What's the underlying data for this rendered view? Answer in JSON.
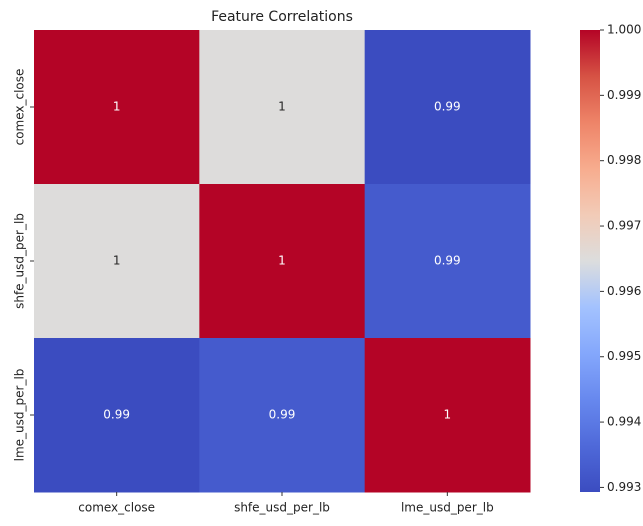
{
  "chart_data": {
    "type": "heatmap",
    "title": "Feature Correlations",
    "x_categories": [
      "comex_close",
      "shfe_usd_per_lb",
      "lme_usd_per_lb"
    ],
    "y_categories": [
      "comex_close",
      "shfe_usd_per_lb",
      "lme_usd_per_lb"
    ],
    "values": [
      [
        1,
        0.9965,
        0.9929
      ],
      [
        0.9965,
        1,
        0.9933
      ],
      [
        0.9929,
        0.9933,
        1
      ]
    ],
    "value_labels": [
      [
        "1",
        "1",
        "0.99"
      ],
      [
        "1",
        "1",
        "0.99"
      ],
      [
        "0.99",
        "0.99",
        "1"
      ]
    ],
    "colormap": "coolwarm",
    "zlim": [
      0.99293,
      1.0
    ],
    "zticks": [
      {
        "value": 0.993,
        "label": "0.993"
      },
      {
        "value": 0.994,
        "label": "0.994"
      },
      {
        "value": 0.995,
        "label": "0.995"
      },
      {
        "value": 0.996,
        "label": "0.996"
      },
      {
        "value": 0.997,
        "label": "0.997"
      },
      {
        "value": 0.998,
        "label": "0.998"
      },
      {
        "value": 0.999,
        "label": "0.999"
      },
      {
        "value": 1.0,
        "label": "1.000"
      }
    ]
  }
}
